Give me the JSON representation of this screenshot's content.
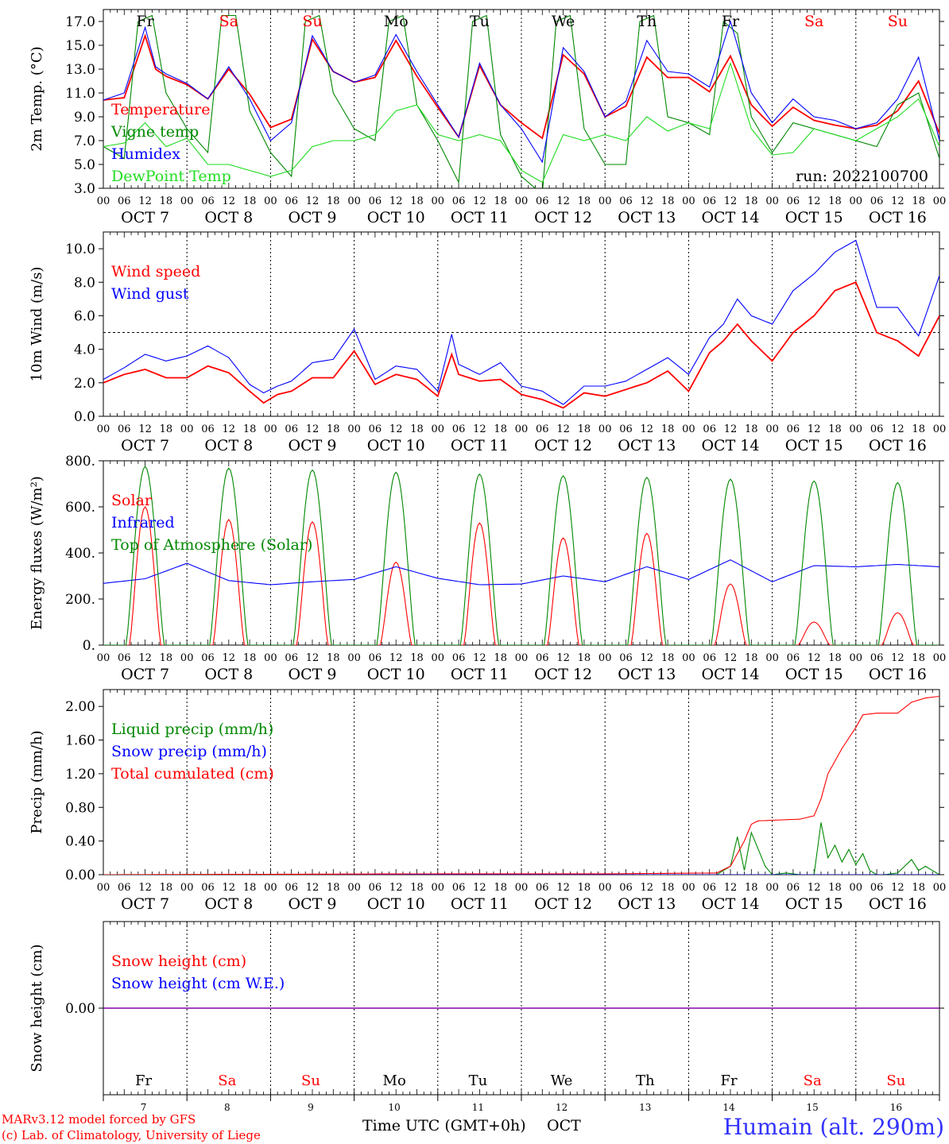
{
  "run_label": "run: 2022100700",
  "footer": {
    "model_line": "MARv3.12 model forced by GFS",
    "credit_line": "(c) Lab. of Climatology, University of Liege",
    "xaxis_label": "Time UTC (GMT+0h)",
    "month_label": "OCT",
    "station": "Humain (alt. 290m)"
  },
  "day_labels": [
    {
      "abbr": "Fr",
      "num": "7",
      "weekend": false,
      "date": "OCT  7"
    },
    {
      "abbr": "Sa",
      "num": "8",
      "weekend": true,
      "date": "OCT  8"
    },
    {
      "abbr": "Su",
      "num": "9",
      "weekend": true,
      "date": "OCT  9"
    },
    {
      "abbr": "Mo",
      "num": "10",
      "weekend": false,
      "date": "OCT 10"
    },
    {
      "abbr": "Tu",
      "num": "11",
      "weekend": false,
      "date": "OCT 11"
    },
    {
      "abbr": "We",
      "num": "12",
      "weekend": false,
      "date": "OCT 12"
    },
    {
      "abbr": "Th",
      "num": "13",
      "weekend": false,
      "date": "OCT 13"
    },
    {
      "abbr": "Fr",
      "num": "14",
      "weekend": false,
      "date": "OCT 14"
    },
    {
      "abbr": "Sa",
      "num": "15",
      "weekend": true,
      "date": "OCT 15"
    },
    {
      "abbr": "Su",
      "num": "16",
      "weekend": true,
      "date": "OCT 16"
    }
  ],
  "hour_ticks": [
    "00",
    "06",
    "12",
    "18"
  ],
  "last_hour_tick": "00",
  "colors": {
    "red": "#ff0000",
    "green": "#008800",
    "blue": "#0000ff",
    "lightgreen": "#22dd22",
    "purple": "#8800aa"
  },
  "chart_data": [
    {
      "type": "line",
      "ylabel": "2m Temp. (°C)",
      "ylim": [
        3,
        18
      ],
      "yticks": [
        "3.0",
        "5.0",
        "7.0",
        "9.0",
        "11.0",
        "13.0",
        "15.0",
        "17.0"
      ],
      "x_unit": "hours since OCT 7 00 UTC",
      "series": [
        {
          "name": "Temperature",
          "color": "red",
          "x": [
            0,
            6,
            12,
            15,
            18,
            24,
            30,
            36,
            42,
            48,
            54,
            60,
            66,
            72,
            78,
            84,
            90,
            96,
            102,
            108,
            114,
            120,
            126,
            132,
            138,
            144,
            150,
            156,
            162,
            168,
            174,
            180,
            186,
            192,
            198,
            204,
            210,
            216,
            222,
            228,
            234,
            240
          ],
          "y": [
            10.4,
            10.6,
            15.8,
            13.0,
            12.4,
            11.7,
            10.5,
            13.0,
            10.9,
            8.1,
            8.8,
            15.5,
            12.8,
            11.9,
            12.3,
            15.4,
            12.4,
            9.8,
            7.3,
            13.3,
            10.0,
            8.5,
            7.2,
            14.2,
            12.6,
            9.0,
            9.9,
            14.0,
            12.3,
            12.3,
            11.1,
            14.1,
            10.0,
            8.2,
            9.8,
            8.7,
            8.3,
            8.0,
            8.3,
            9.5,
            12.0,
            7.6
          ]
        },
        {
          "name": "Vigne temp",
          "color": "green",
          "x": [
            0,
            6,
            10,
            14,
            18,
            24,
            30,
            34,
            38,
            42,
            48,
            54,
            58,
            62,
            66,
            72,
            78,
            82,
            86,
            90,
            96,
            102,
            106,
            110,
            114,
            120,
            126,
            130,
            134,
            138,
            144,
            150,
            154,
            158,
            162,
            168,
            174,
            178,
            182,
            186,
            192,
            198,
            204,
            210,
            216,
            222,
            228,
            234,
            240
          ],
          "y": [
            6.5,
            5.5,
            17.0,
            17.5,
            11.0,
            8.0,
            6.0,
            17.5,
            17.5,
            9.5,
            6.0,
            4.0,
            17.0,
            17.5,
            11.0,
            8.0,
            7.0,
            17.0,
            17.5,
            10.0,
            7.0,
            3.5,
            17.0,
            17.5,
            7.5,
            4.0,
            2.5,
            17.0,
            17.5,
            8.0,
            5.0,
            5.0,
            17.0,
            17.5,
            9.0,
            8.5,
            7.5,
            17.0,
            16.0,
            9.0,
            6.0,
            8.5,
            8.0,
            7.5,
            7.0,
            6.5,
            10.0,
            11.0,
            5.5
          ]
        },
        {
          "name": "Humidex",
          "color": "blue",
          "x": [
            0,
            6,
            12,
            15,
            18,
            24,
            30,
            36,
            42,
            48,
            54,
            60,
            66,
            72,
            78,
            84,
            90,
            96,
            102,
            108,
            114,
            120,
            126,
            132,
            138,
            144,
            150,
            156,
            162,
            168,
            174,
            180,
            186,
            192,
            198,
            204,
            210,
            216,
            222,
            228,
            234,
            240
          ],
          "y": [
            10.4,
            11.0,
            16.5,
            13.2,
            12.6,
            11.8,
            10.5,
            13.2,
            10.5,
            7.0,
            8.5,
            15.8,
            12.8,
            11.9,
            12.5,
            15.9,
            12.8,
            10.0,
            7.3,
            13.5,
            10.0,
            8.0,
            5.2,
            14.8,
            12.8,
            9.0,
            10.3,
            15.4,
            12.8,
            12.6,
            11.5,
            17.0,
            11.0,
            8.5,
            10.5,
            9.0,
            8.7,
            8.0,
            8.5,
            10.5,
            14.0,
            7.0
          ]
        },
        {
          "name": "DewPoint Temp",
          "color": "lightgreen",
          "x": [
            0,
            6,
            12,
            18,
            24,
            30,
            36,
            42,
            48,
            54,
            60,
            66,
            72,
            78,
            84,
            90,
            96,
            102,
            108,
            114,
            120,
            126,
            132,
            138,
            144,
            150,
            156,
            162,
            168,
            174,
            180,
            186,
            192,
            198,
            204,
            210,
            216,
            222,
            228,
            234,
            240
          ],
          "y": [
            6.5,
            6.8,
            8.5,
            6.5,
            7.2,
            5.0,
            5.0,
            4.5,
            4.0,
            4.5,
            6.5,
            7.0,
            7.0,
            7.5,
            9.5,
            10.0,
            7.5,
            7.0,
            7.5,
            7.0,
            4.5,
            3.5,
            7.5,
            7.0,
            7.5,
            7.0,
            9.0,
            7.8,
            8.5,
            8.0,
            13.5,
            8.0,
            5.8,
            6.0,
            8.0,
            7.5,
            7.0,
            8.0,
            9.0,
            10.5,
            6.5
          ]
        }
      ],
      "annotations": [
        "run: 2022100700"
      ],
      "grid": "dashed daily verticals",
      "legend": "top-left"
    },
    {
      "type": "line",
      "ylabel": "10m Wind (m/s)",
      "ylim": [
        0,
        11
      ],
      "yticks": [
        "0.0",
        "2.0",
        "4.0",
        "6.0",
        "8.0",
        "10.0"
      ],
      "reference_line": 5.0,
      "series": [
        {
          "name": "Wind speed",
          "color": "red",
          "x": [
            0,
            6,
            12,
            18,
            24,
            30,
            36,
            42,
            46,
            50,
            54,
            60,
            66,
            72,
            78,
            84,
            90,
            96,
            100,
            102,
            108,
            114,
            120,
            126,
            132,
            138,
            144,
            150,
            156,
            162,
            168,
            174,
            178,
            182,
            186,
            192,
            198,
            204,
            210,
            216,
            222,
            228,
            234,
            240
          ],
          "y": [
            2.0,
            2.5,
            2.8,
            2.3,
            2.3,
            3.0,
            2.6,
            1.5,
            0.8,
            1.3,
            1.5,
            2.3,
            2.3,
            3.9,
            1.9,
            2.5,
            2.2,
            1.2,
            3.7,
            2.5,
            2.1,
            2.2,
            1.3,
            1.0,
            0.5,
            1.4,
            1.2,
            1.6,
            2.0,
            2.7,
            1.5,
            3.8,
            4.5,
            5.5,
            4.5,
            3.3,
            5.0,
            6.0,
            7.5,
            8.0,
            5.0,
            4.5,
            3.6,
            6.0
          ]
        },
        {
          "name": "Wind gust",
          "color": "blue",
          "x": [
            0,
            6,
            12,
            18,
            24,
            30,
            36,
            42,
            46,
            50,
            54,
            60,
            66,
            72,
            78,
            84,
            90,
            96,
            100,
            102,
            108,
            114,
            120,
            126,
            132,
            138,
            144,
            150,
            156,
            162,
            168,
            174,
            178,
            182,
            186,
            192,
            198,
            204,
            210,
            216,
            222,
            228,
            234,
            240
          ],
          "y": [
            2.2,
            2.9,
            3.7,
            3.3,
            3.6,
            4.2,
            3.5,
            1.9,
            1.4,
            1.8,
            2.1,
            3.2,
            3.4,
            5.2,
            2.2,
            3.0,
            2.8,
            1.5,
            4.9,
            3.1,
            2.5,
            3.2,
            1.8,
            1.5,
            0.7,
            1.8,
            1.8,
            2.1,
            2.8,
            3.5,
            2.5,
            4.7,
            5.5,
            7.0,
            6.0,
            5.5,
            7.5,
            8.5,
            9.8,
            10.5,
            6.5,
            6.5,
            4.8,
            8.4
          ]
        }
      ],
      "legend": "top-left"
    },
    {
      "type": "line",
      "ylabel": "Energy fluxes (W/m²)",
      "ylim": [
        0,
        800
      ],
      "yticks": [
        "0.",
        "200.",
        "400.",
        "600.",
        "800."
      ],
      "series": [
        {
          "name": "Solar",
          "color": "red",
          "peak_hour": 12,
          "day_peaks": [
            600,
            545,
            535,
            360,
            530,
            465,
            485,
            265,
            100,
            140
          ]
        },
        {
          "name": "Infrared",
          "color": "blue",
          "x": [
            0,
            12,
            24,
            36,
            48,
            60,
            72,
            84,
            96,
            108,
            120,
            132,
            144,
            156,
            168,
            180,
            192,
            204,
            216,
            228,
            240
          ],
          "y": [
            268,
            288,
            355,
            280,
            262,
            275,
            285,
            340,
            290,
            262,
            265,
            300,
            275,
            340,
            285,
            370,
            275,
            345,
            340,
            350,
            340
          ]
        },
        {
          "name": "Top of Atmosphere (Solar)",
          "color": "green",
          "peak_hour": 12,
          "day_peaks": [
            775,
            768,
            760,
            750,
            742,
            735,
            728,
            720,
            712,
            705
          ]
        }
      ],
      "legend": "top-left"
    },
    {
      "type": "line",
      "ylabel": "Precip (mm/h)",
      "ylim": [
        0,
        2.2
      ],
      "yticks": [
        "0.00",
        "0.40",
        "0.80",
        "1.20",
        "1.60",
        "2.00"
      ],
      "series": [
        {
          "name": "Liquid precip (mm/h)",
          "color": "green",
          "x": [
            0,
            176,
            180,
            182,
            184,
            186,
            188,
            190,
            192,
            196,
            200,
            204,
            206,
            208,
            210,
            212,
            214,
            216,
            218,
            220,
            222,
            224,
            228,
            232,
            234,
            236,
            240
          ],
          "y": [
            0,
            0,
            0.1,
            0.45,
            0.05,
            0.5,
            0.3,
            0.1,
            0,
            0.02,
            0,
            0,
            0.62,
            0.2,
            0.35,
            0.15,
            0.3,
            0.12,
            0.25,
            0.05,
            0,
            0,
            0.02,
            0.18,
            0.05,
            0.1,
            0
          ]
        },
        {
          "name": "Snow precip (mm/h)",
          "color": "blue",
          "x": [
            0,
            240
          ],
          "y": [
            0,
            0
          ]
        },
        {
          "name": "Total cumulated (cm)",
          "color": "red",
          "x": [
            0,
            96,
            144,
            176,
            180,
            184,
            186,
            188,
            200,
            204,
            206,
            208,
            212,
            216,
            218,
            222,
            228,
            232,
            236,
            240
          ],
          "y": [
            0,
            0.01,
            0.01,
            0.02,
            0.1,
            0.4,
            0.6,
            0.64,
            0.66,
            0.7,
            0.9,
            1.2,
            1.5,
            1.75,
            1.9,
            1.92,
            1.92,
            2.05,
            2.1,
            2.12
          ]
        }
      ],
      "legend": "top-left"
    },
    {
      "type": "line",
      "ylabel": "Snow height (cm)",
      "ylim": [
        -1,
        1
      ],
      "yticks": [
        "0.00"
      ],
      "series": [
        {
          "name": "Snow height (cm)",
          "color": "red",
          "x": [
            0,
            240
          ],
          "y": [
            0,
            0
          ]
        },
        {
          "name": "Snow height (cm W.E.)",
          "color": "blue",
          "x": [
            0,
            240
          ],
          "y": [
            0,
            0
          ]
        }
      ],
      "legend": "top-left"
    }
  ]
}
